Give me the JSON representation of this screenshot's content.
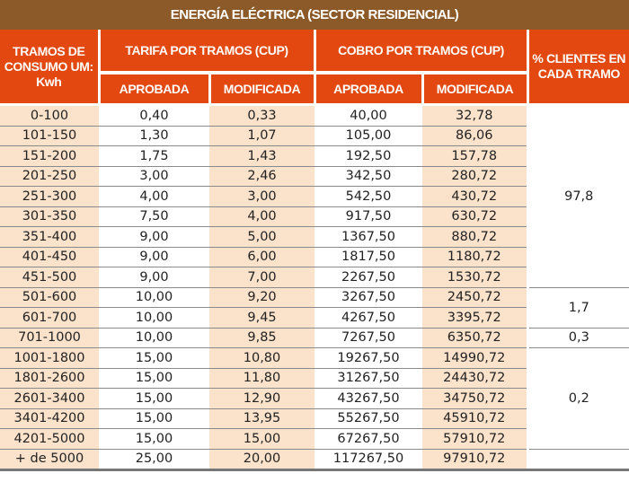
{
  "title": "ENERGÍA ELÉCTRICA (SECTOR RESIDENCIAL)",
  "headers": {
    "tramos": "TRAMOS DE CONSUMO UM: Kwh",
    "tarifa": "TARIFA POR TRAMOS (CUP)",
    "cobro": "COBRO POR TRAMOS (CUP)",
    "clientes": "% CLIENTES EN CADA TRAMO",
    "aprobada": "APROBADA",
    "modificada": "MODIFICADA"
  },
  "rows": [
    [
      "0-100",
      "0,40",
      "0,33",
      "40,00",
      "32,78"
    ],
    [
      "101-150",
      "1,30",
      "1,07",
      "105,00",
      "86,06"
    ],
    [
      "151-200",
      "1,75",
      "1,43",
      "192,50",
      "157,78"
    ],
    [
      "201-250",
      "3,00",
      "2,46",
      "342,50",
      "280,72"
    ],
    [
      "251-300",
      "4,00",
      "3,00",
      "542,50",
      "430,72"
    ],
    [
      "301-350",
      "7,50",
      "4,00",
      "917,50",
      "630,72"
    ],
    [
      "351-400",
      "9,00",
      "5,00",
      "1367,50",
      "880,72"
    ],
    [
      "401-450",
      "9,00",
      "6,00",
      "1817,50",
      "1180,72"
    ],
    [
      "451-500",
      "9,00",
      "7,00",
      "2267,50",
      "1530,72"
    ],
    [
      "501-600",
      "10,00",
      "9,20",
      "3267,50",
      "2450,72"
    ],
    [
      "601-700",
      "10,00",
      "9,45",
      "4267,50",
      "3395,72"
    ],
    [
      "701-1000",
      "10,00",
      "9,85",
      "7267,50",
      "6350,72"
    ],
    [
      "1001-1800",
      "15,00",
      "10,80",
      "19267,50",
      "14990,72"
    ],
    [
      "1801-2600",
      "15,00",
      "11,80",
      "31267,50",
      "24430,72"
    ],
    [
      "2601-3400",
      "15,00",
      "12,90",
      "43267,50",
      "34750,72"
    ],
    [
      "3401-4200",
      "15,00",
      "13,95",
      "55267,50",
      "45910,72"
    ],
    [
      "4201-5000",
      "15,00",
      "15,00",
      "67267,50",
      "57910,72"
    ],
    [
      "+ de 5000",
      "25,00",
      "20,00",
      "117267,50",
      "97910,72"
    ]
  ],
  "clientes_groups": [
    {
      "start": 0,
      "span": 9,
      "value": "97,8"
    },
    {
      "start": 9,
      "span": 2,
      "value": "1,7"
    },
    {
      "start": 11,
      "span": 1,
      "value": "0,3"
    },
    {
      "start": 12,
      "span": 5,
      "value": "0,2"
    },
    {
      "start": 17,
      "span": 1,
      "value": ""
    }
  ]
}
